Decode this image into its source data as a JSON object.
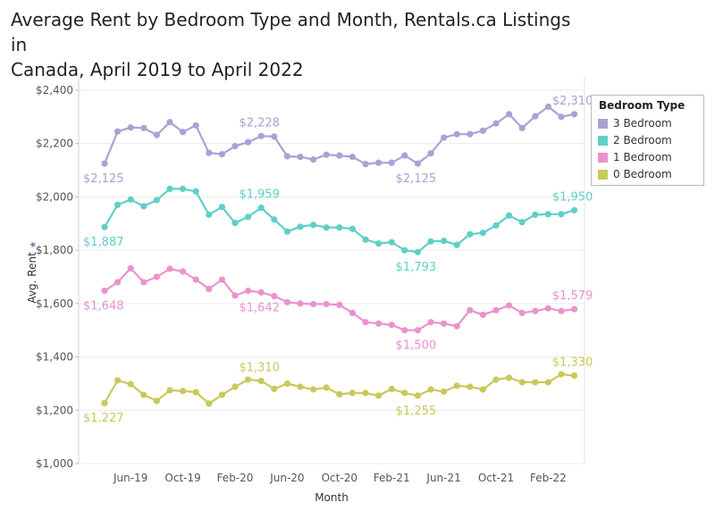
{
  "title": {
    "line1": "Average Rent by Bedroom Type and Month, Rentals.ca Listings in",
    "line2": "Canada, April 2019 to April 2022"
  },
  "legend": {
    "title": "Bedroom Type",
    "items": [
      {
        "label": "3 Bedroom",
        "color": "#a7a3d6"
      },
      {
        "label": "2 Bedroom",
        "color": "#5fcfc9"
      },
      {
        "label": "1 Bedroom",
        "color": "#ea92cf"
      },
      {
        "label": "0 Bedroom",
        "color": "#c9c95a"
      }
    ]
  },
  "chart_data": {
    "type": "line",
    "title": "Average Rent by Bedroom Type and Month, Rentals.ca Listings in Canada, April 2019 to April 2022",
    "xlabel": "Month",
    "ylabel": "Avg. Rent",
    "ylabel_marker": "★",
    "ylim": [
      1000,
      2450
    ],
    "yticks": [
      1000,
      1200,
      1400,
      1600,
      1800,
      2000,
      2200,
      2400
    ],
    "ytick_labels": [
      "$1,000",
      "$1,200",
      "$1,400",
      "$1,600",
      "$1,800",
      "$2,000",
      "$2,200",
      "$2,400"
    ],
    "x": [
      "Apr-19",
      "May-19",
      "Jun-19",
      "Jul-19",
      "Aug-19",
      "Sep-19",
      "Oct-19",
      "Nov-19",
      "Dec-19",
      "Jan-20",
      "Feb-20",
      "Mar-20",
      "Apr-20",
      "May-20",
      "Jun-20",
      "Jul-20",
      "Aug-20",
      "Sep-20",
      "Oct-20",
      "Nov-20",
      "Dec-20",
      "Jan-21",
      "Feb-21",
      "Mar-21",
      "Apr-21",
      "May-21",
      "Jun-21",
      "Jul-21",
      "Aug-21",
      "Sep-21",
      "Oct-21",
      "Nov-21",
      "Dec-21",
      "Jan-22",
      "Feb-22",
      "Mar-22",
      "Apr-22"
    ],
    "xtick_labels": [
      {
        "index": 2,
        "label": "Jun-19"
      },
      {
        "index": 6,
        "label": "Oct-19"
      },
      {
        "index": 10,
        "label": "Feb-20"
      },
      {
        "index": 14,
        "label": "Jun-20"
      },
      {
        "index": 18,
        "label": "Oct-20"
      },
      {
        "index": 22,
        "label": "Feb-21"
      },
      {
        "index": 26,
        "label": "Jun-21"
      },
      {
        "index": 30,
        "label": "Oct-21"
      },
      {
        "index": 34,
        "label": "Feb-22"
      }
    ],
    "grid": "horizontal",
    "legend_position": "right",
    "series": [
      {
        "name": "3 Bedroom",
        "color": "#a7a3d6",
        "values": [
          2125,
          2245,
          2260,
          2258,
          2232,
          2280,
          2243,
          2268,
          2165,
          2160,
          2190,
          2205,
          2228,
          2226,
          2152,
          2150,
          2140,
          2158,
          2155,
          2150,
          2123,
          2128,
          2128,
          2155,
          2125,
          2163,
          2222,
          2235,
          2235,
          2248,
          2275,
          2310,
          2258,
          2302,
          2338,
          2300,
          2310
        ]
      },
      {
        "name": "2 Bedroom",
        "color": "#5fcfc9",
        "values": [
          1887,
          1970,
          1990,
          1965,
          1988,
          2030,
          2030,
          2020,
          1933,
          1962,
          1902,
          1925,
          1959,
          1915,
          1870,
          1888,
          1895,
          1885,
          1885,
          1880,
          1840,
          1825,
          1830,
          1800,
          1793,
          1833,
          1835,
          1820,
          1860,
          1865,
          1893,
          1930,
          1905,
          1933,
          1935,
          1935,
          1950
        ]
      },
      {
        "name": "1 Bedroom",
        "color": "#ea92cf",
        "values": [
          1648,
          1680,
          1732,
          1680,
          1700,
          1730,
          1720,
          1690,
          1655,
          1690,
          1630,
          1648,
          1642,
          1628,
          1605,
          1600,
          1598,
          1598,
          1595,
          1565,
          1530,
          1525,
          1520,
          1500,
          1500,
          1530,
          1525,
          1515,
          1575,
          1558,
          1575,
          1593,
          1565,
          1572,
          1582,
          1572,
          1579
        ]
      },
      {
        "name": "0 Bedroom",
        "color": "#c9c95a",
        "values": [
          1227,
          1312,
          1298,
          1258,
          1235,
          1275,
          1272,
          1268,
          1225,
          1258,
          1288,
          1315,
          1310,
          1280,
          1300,
          1288,
          1278,
          1285,
          1260,
          1265,
          1265,
          1255,
          1280,
          1265,
          1255,
          1278,
          1270,
          1292,
          1288,
          1278,
          1315,
          1322,
          1305,
          1305,
          1305,
          1335,
          1330
        ]
      }
    ],
    "annotations": [
      {
        "series": "3 Bedroom",
        "index": 0,
        "text": "$2,125",
        "pos": "below"
      },
      {
        "series": "3 Bedroom",
        "index": 12,
        "text": "$2,228",
        "pos": "above"
      },
      {
        "series": "3 Bedroom",
        "index": 24,
        "text": "$2,125",
        "pos": "below"
      },
      {
        "series": "3 Bedroom",
        "index": 36,
        "text": "$2,310",
        "pos": "above"
      },
      {
        "series": "2 Bedroom",
        "index": 0,
        "text": "$1,887",
        "pos": "below"
      },
      {
        "series": "2 Bedroom",
        "index": 12,
        "text": "$1,959",
        "pos": "above"
      },
      {
        "series": "2 Bedroom",
        "index": 24,
        "text": "$1,793",
        "pos": "below"
      },
      {
        "series": "2 Bedroom",
        "index": 36,
        "text": "$1,950",
        "pos": "above"
      },
      {
        "series": "1 Bedroom",
        "index": 0,
        "text": "$1,648",
        "pos": "below"
      },
      {
        "series": "1 Bedroom",
        "index": 12,
        "text": "$1,642",
        "pos": "below"
      },
      {
        "series": "1 Bedroom",
        "index": 24,
        "text": "$1,500",
        "pos": "below"
      },
      {
        "series": "1 Bedroom",
        "index": 36,
        "text": "$1,579",
        "pos": "above"
      },
      {
        "series": "0 Bedroom",
        "index": 0,
        "text": "$1,227",
        "pos": "below"
      },
      {
        "series": "0 Bedroom",
        "index": 12,
        "text": "$1,310",
        "pos": "above"
      },
      {
        "series": "0 Bedroom",
        "index": 24,
        "text": "$1,255",
        "pos": "below"
      },
      {
        "series": "0 Bedroom",
        "index": 36,
        "text": "$1,330",
        "pos": "above"
      }
    ]
  }
}
